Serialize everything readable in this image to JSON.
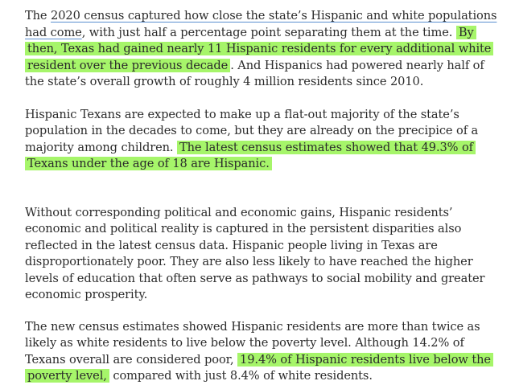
{
  "article": {
    "p1": {
      "t1": "The ",
      "link": "2020 census captured how close the state’s Hispanic and white populations had come",
      "t2": ", with just half a percentage point separating them at the time. ",
      "hl": "By then, Texas had gained nearly 11 Hispanic residents for every additional white resident over the previous decade",
      "t3": ". And Hispanics had powered nearly half of the state’s overall growth of roughly 4 million residents since 2010."
    },
    "p2": {
      "t1": "Hispanic Texans are expected to make up a flat-out majority of the state’s population in the decades to come, but they are already on the precipice of a majority among children. ",
      "hl": "The latest census estimates showed that 49.3% of Texans under the age of 18 are Hispanic."
    },
    "p3": {
      "t1": "Without corresponding political and economic gains, Hispanic residents’ economic and political reality is captured in the persistent disparities also reflected in the latest census data. Hispanic people living in Texas are disproportionately poor. They are also less likely to have reached the higher levels of education that often serve as pathways to social mobility and greater economic prosperity."
    },
    "p4": {
      "t1": "The new census estimates showed Hispanic residents are more than twice as likely as white residents to live below the poverty level. Although 14.2% of Texans overall are considered poor, ",
      "hl": "19.4% of Hispanic residents live below the poverty level,",
      "t2": " compared with just 8.4% of white residents."
    }
  },
  "colors": {
    "highlight": "#a6f56a",
    "text": "#2b2b2b",
    "link_underline": "#5a8fd0"
  }
}
